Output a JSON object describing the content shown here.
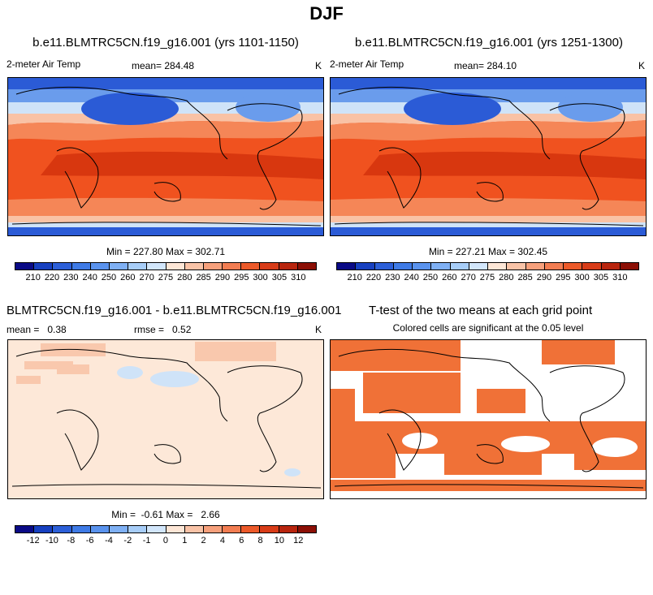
{
  "page_title": "DJF",
  "panels": {
    "top_left": {
      "title": "b.e11.BLMTRC5CN.f19_g16.001 (yrs 1101-1150)",
      "variable": "2-meter Air Temp",
      "mean": "mean= 284.48",
      "units": "K",
      "minmax": "Min = 227.80 Max = 302.71"
    },
    "top_right": {
      "title": "b.e11.BLMTRC5CN.f19_g16.001 (yrs 1251-1300)",
      "variable": "2-meter Air Temp",
      "mean": "mean= 284.10",
      "units": "K",
      "minmax": "Min = 227.21 Max = 302.45"
    },
    "bottom_left": {
      "title": "BLMTRC5CN.f19_g16.001 - b.e11.BLMTRC5CN.f19_g16.001",
      "mean": "mean =   0.38",
      "rmse": "rmse =   0.52",
      "units": "K",
      "minmax": "Min =  -0.61 Max =   2.66"
    },
    "bottom_right": {
      "title": "T-test of the two means at each grid point",
      "subtitle": "Colored cells are significant at the 0.05 level"
    }
  },
  "colorbars": {
    "temp": {
      "labels": [
        "210",
        "220",
        "230",
        "240",
        "250",
        "260",
        "270",
        "275",
        "280",
        "285",
        "290",
        "295",
        "300",
        "305",
        "310"
      ],
      "colors": [
        "#0a0a86",
        "#1740c0",
        "#2c5fd8",
        "#3f7be6",
        "#5a93ee",
        "#7fb0f4",
        "#a7cdf8",
        "#d2e6fb",
        "#fde6d6",
        "#f9c3a7",
        "#f6a07c",
        "#f27d52",
        "#ec5a2a",
        "#d83c18",
        "#b8250e",
        "#8c0f05"
      ]
    },
    "diff": {
      "labels": [
        "-12",
        "-10",
        "-8",
        "-6",
        "-4",
        "-2",
        "-1",
        "0",
        "1",
        "2",
        "4",
        "6",
        "8",
        "10",
        "12"
      ],
      "colors": [
        "#0a0a86",
        "#1740c0",
        "#2c5fd8",
        "#3f7be6",
        "#5a93ee",
        "#7fb0f4",
        "#a7cdf8",
        "#d2e6fb",
        "#fde6d6",
        "#f9c3a7",
        "#f6a07c",
        "#f27d52",
        "#ec5a2a",
        "#d83c18",
        "#b8250e",
        "#8c0f05"
      ]
    }
  },
  "map_colors": {
    "ocean_warm": "#f0521f",
    "tropics_hot": "#d8370f",
    "mid_warm": "#f58657",
    "subpolar": "#f9c2a5",
    "cool": "#cfe3f8",
    "cold": "#6a9cec",
    "polar": "#2b5bd6",
    "diff_bg": "#fde8d8",
    "diff_pos": "#f9c8ad",
    "diff_neg": "#cfe3f8",
    "sig": "#f07137"
  }
}
